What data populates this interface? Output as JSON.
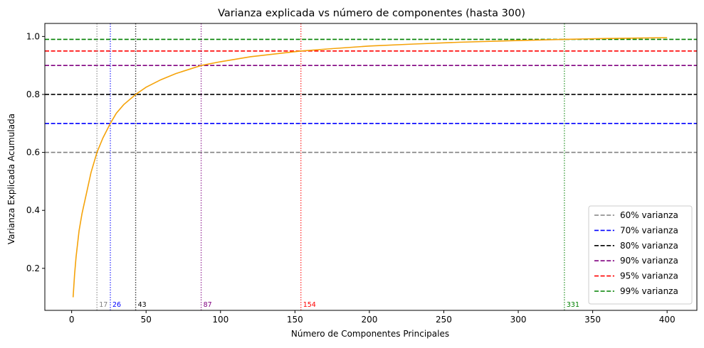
{
  "chart_data": {
    "type": "line",
    "title": "Varianza explicada vs número de componentes (hasta 300)",
    "xlabel": "Número de Componentes Principales",
    "ylabel": "Varianza Explicada Acumulada",
    "xlim": [
      -18,
      420
    ],
    "ylim": [
      0.055,
      1.045
    ],
    "xticks": [
      0,
      50,
      100,
      150,
      200,
      250,
      300,
      350,
      400
    ],
    "yticks": [
      0.2,
      0.4,
      0.6,
      0.8,
      1.0
    ],
    "ytick_labels": [
      "0.2",
      "0.4",
      "0.6",
      "0.8",
      "1.0"
    ],
    "grid": false,
    "legend_position": "lower-right",
    "curve": {
      "color": "#f5a30a",
      "x": [
        1,
        2,
        3,
        5,
        7,
        10,
        13,
        17,
        21,
        26,
        30,
        35,
        43,
        50,
        60,
        70,
        87,
        100,
        120,
        154,
        175,
        200,
        230,
        260,
        300,
        331,
        360,
        400
      ],
      "y": [
        0.1,
        0.18,
        0.24,
        0.33,
        0.39,
        0.46,
        0.53,
        0.6,
        0.65,
        0.7,
        0.735,
        0.765,
        0.8,
        0.825,
        0.851,
        0.872,
        0.9,
        0.913,
        0.93,
        0.95,
        0.958,
        0.967,
        0.974,
        0.98,
        0.986,
        0.99,
        0.993,
        0.996
      ]
    },
    "thresholds": [
      {
        "label": "60% varianza",
        "y": 0.6,
        "x": 17,
        "x_label": "17",
        "color": "#808080"
      },
      {
        "label": "70% varianza",
        "y": 0.7,
        "x": 26,
        "x_label": "26",
        "color": "#0000ff"
      },
      {
        "label": "80% varianza",
        "y": 0.8,
        "x": 43,
        "x_label": "43",
        "color": "#000000"
      },
      {
        "label": "90% varianza",
        "y": 0.9,
        "x": 87,
        "x_label": "87",
        "color": "#800080"
      },
      {
        "label": "95% varianza",
        "y": 0.95,
        "x": 154,
        "x_label": "154",
        "color": "#ff0000"
      },
      {
        "label": "99% varianza",
        "y": 0.99,
        "x": 331,
        "x_label": "331",
        "color": "#008000"
      }
    ]
  }
}
